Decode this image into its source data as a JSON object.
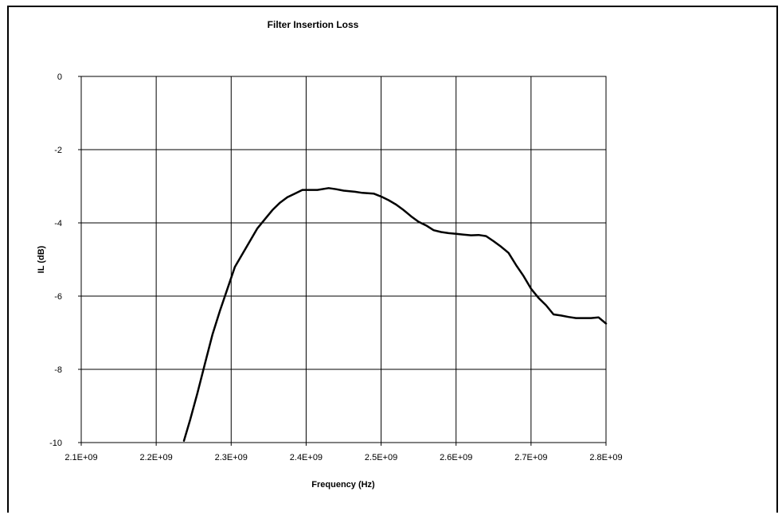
{
  "chart_data": {
    "type": "line",
    "title": "Filter Insertion Loss",
    "xlabel": "Frequency (Hz)",
    "ylabel": "IL (dB)",
    "xlim": [
      2100000000,
      2800000000
    ],
    "ylim": [
      -10,
      0
    ],
    "x_tick_labels": [
      "2.1E+09",
      "2.2E+09",
      "2.3E+09",
      "2.4E+09",
      "2.5E+09",
      "2.6E+09",
      "2.7E+09",
      "2.8E+09"
    ],
    "y_tick_labels": [
      "0",
      "-2",
      "-4",
      "-6",
      "-8",
      "-10"
    ],
    "grid": true,
    "legend": "none",
    "line_color": "#000000",
    "series": [
      {
        "x": [
          2237000000,
          2245000000,
          2255000000,
          2265000000,
          2275000000,
          2285000000,
          2295000000,
          2305000000,
          2315000000,
          2325000000,
          2335000000,
          2345000000,
          2355000000,
          2365000000,
          2375000000,
          2385000000,
          2395000000,
          2405000000,
          2415000000,
          2430000000,
          2440000000,
          2450000000,
          2465000000,
          2475000000,
          2490000000,
          2500000000,
          2510000000,
          2520000000,
          2530000000,
          2540000000,
          2550000000,
          2560000000,
          2570000000,
          2580000000,
          2590000000,
          2600000000,
          2610000000,
          2620000000,
          2630000000,
          2640000000,
          2650000000,
          2660000000,
          2670000000,
          2680000000,
          2690000000,
          2700000000,
          2710000000,
          2720000000,
          2730000000,
          2740000000,
          2750000000,
          2760000000,
          2770000000,
          2780000000,
          2790000000,
          2800000000
        ],
        "y": [
          -9.95,
          -9.4,
          -8.65,
          -7.85,
          -7.05,
          -6.4,
          -5.8,
          -5.2,
          -4.85,
          -4.5,
          -4.15,
          -3.9,
          -3.65,
          -3.45,
          -3.3,
          -3.2,
          -3.1,
          -3.1,
          -3.1,
          -3.05,
          -3.08,
          -3.12,
          -3.15,
          -3.18,
          -3.2,
          -3.28,
          -3.38,
          -3.5,
          -3.65,
          -3.82,
          -3.97,
          -4.07,
          -4.2,
          -4.25,
          -4.28,
          -4.3,
          -4.32,
          -4.34,
          -4.33,
          -4.36,
          -4.5,
          -4.65,
          -4.82,
          -5.15,
          -5.45,
          -5.8,
          -6.05,
          -6.25,
          -6.5,
          -6.53,
          -6.57,
          -6.6,
          -6.6,
          -6.6,
          -6.58,
          -6.75
        ]
      }
    ]
  }
}
